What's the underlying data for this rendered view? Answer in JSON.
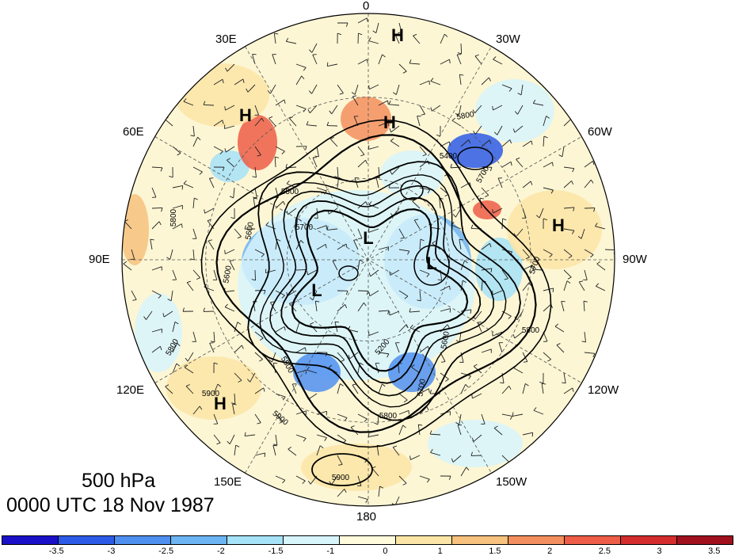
{
  "map": {
    "title": {
      "level": "500 hPa",
      "time": "0000 UTC 18 Nov 1987"
    },
    "longitude_labels": [
      "0",
      "30W",
      "60W",
      "90W",
      "120W",
      "150W",
      "180",
      "150E",
      "120E",
      "90E",
      "60E",
      "30E"
    ],
    "pressure_systems": [
      {
        "type": "H"
      },
      {
        "type": "H"
      },
      {
        "type": "H"
      },
      {
        "type": "H"
      },
      {
        "type": "H"
      },
      {
        "type": "L"
      },
      {
        "type": "L"
      },
      {
        "type": "L"
      }
    ],
    "contour_labels": [
      "5800",
      "5400",
      "5700",
      "5500",
      "5600",
      "5700",
      "5800",
      "5900",
      "5900",
      "5800",
      "5600",
      "5700",
      "5800",
      "5200",
      "5600",
      "5500",
      "5700",
      "5800",
      "5900"
    ],
    "colorbar": {
      "tick_labels": [
        "-3.5",
        "-3",
        "-2.5",
        "-2",
        "-1.5",
        "-1",
        "0",
        "1",
        "1.5",
        "2",
        "2.5",
        "3",
        "3.5"
      ],
      "colors": [
        "#1a10c8",
        "#2d5ae6",
        "#4f8ff0",
        "#6cb4f3",
        "#a6e2f8",
        "#d7f5fb",
        "#fffbdc",
        "#fbe5a6",
        "#f6c27e",
        "#f38f5e",
        "#ed5d47",
        "#d32d2d",
        "#a1101d"
      ]
    }
  }
}
